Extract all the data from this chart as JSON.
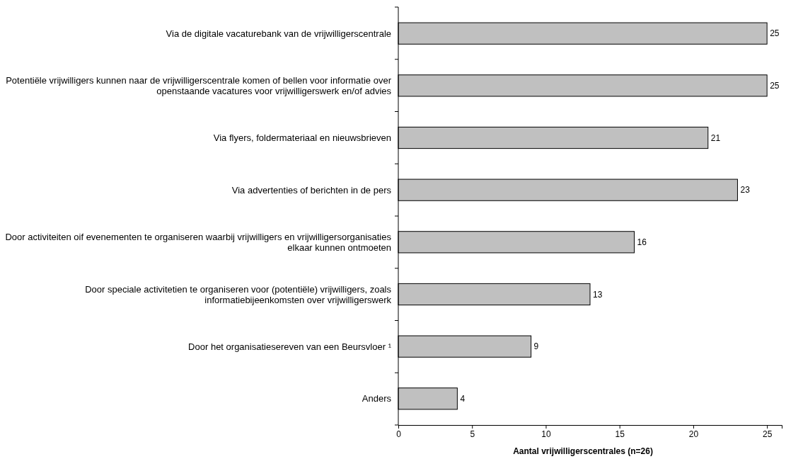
{
  "chart_data": {
    "type": "bar",
    "orientation": "horizontal",
    "xlabel": "Aantal vrijwilligerscentrales (n=26)",
    "categories": [
      "Via de digitale vacaturebank van de vrijwilligerscentrale",
      "Potentiële vrijwilligers kunnen naar de vrijwilligerscentrale komen of bellen voor informatie over openstaande vacatures voor vrijwilligerswerk en/of advies",
      "Via flyers, foldermateriaal en nieuwsbrieven",
      "Via advertenties of berichten in de pers",
      "Door activiteiten oif evenementen te organiseren waarbij vrijwilligers en vrijwilligersorganisaties elkaar kunnen ontmoeten",
      "Door speciale activitetien te organiseren voor (potentiële) vrijwilligers, zoals informatiebijeenkomsten over vrijwilligerswerk",
      "Door het organisatiesereven van een Beursvloer ¹",
      "Anders"
    ],
    "values": [
      25,
      25,
      21,
      23,
      16,
      13,
      9,
      4
    ],
    "color": "#c0c0c0",
    "xlim": [
      0,
      26
    ],
    "xticks": [
      0,
      5,
      10,
      15,
      20,
      25
    ],
    "data_labels": true,
    "grid": false
  }
}
